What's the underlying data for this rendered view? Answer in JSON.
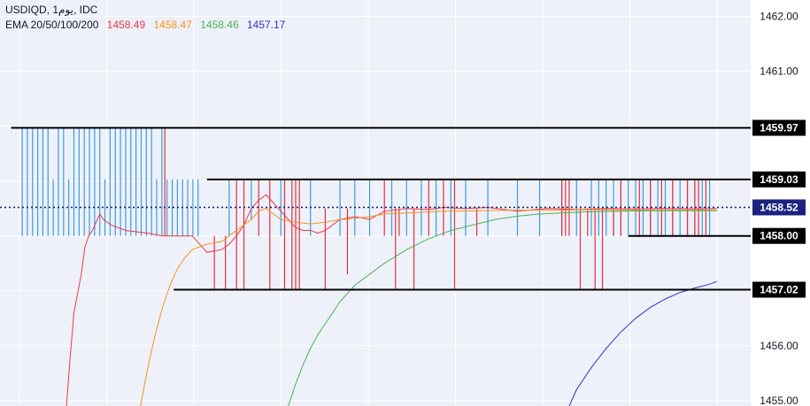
{
  "header": {
    "symbol_line": "USDIQD, 1يوم, IDC",
    "ema_label": "EMA 20/50/100/200",
    "ema_values": [
      {
        "value": "1458.49",
        "color": "#f23645"
      },
      {
        "value": "1458.47",
        "color": "#f7931a"
      },
      {
        "value": "1458.46",
        "color": "#4caf50"
      },
      {
        "value": "1457.17",
        "color": "#3030d0"
      }
    ]
  },
  "colors": {
    "background": "#eef1fa",
    "grid": "#ffffff",
    "up_candle": "#3d9be0",
    "down_candle": "#e0303f",
    "level_line": "#000000",
    "ema20": "#f23645",
    "ema50": "#f7931a",
    "ema100": "#4caf50",
    "ema200": "#3030d0"
  },
  "chart_data": {
    "type": "line",
    "y_axis": {
      "position": "right",
      "range": [
        1454.9,
        1462.3
      ],
      "ticks": [
        "1455.00",
        "1456.00",
        "1457.00",
        "1458.00",
        "1459.00",
        "1460.00",
        "1461.00",
        "1462.00"
      ]
    },
    "grid": true,
    "x_range": [
      0,
      100
    ],
    "horizontal_levels": [
      {
        "label": "1459.97",
        "value": 1459.97,
        "x_start": 1.5
      },
      {
        "label": "1459.03",
        "value": 1459.03,
        "x_start": 28
      },
      {
        "label": "1458.00",
        "value": 1458.0,
        "x_start": 85
      },
      {
        "label": "1457.02",
        "value": 1457.02,
        "x_start": 23.5
      }
    ],
    "current_price": {
      "label": "1458.52",
      "value": 1458.52,
      "style": "dotted"
    },
    "candles_up": [
      [
        3,
        1458,
        1459.97
      ],
      [
        3.7,
        1458,
        1459.97
      ],
      [
        4.4,
        1458,
        1459.97
      ],
      [
        5.1,
        1458,
        1459.97
      ],
      [
        5.8,
        1458,
        1459.97
      ],
      [
        6.5,
        1458,
        1459.97
      ],
      [
        7.2,
        1458,
        1459.03
      ],
      [
        7.9,
        1458,
        1459.97
      ],
      [
        8.6,
        1458,
        1459.97
      ],
      [
        9.3,
        1458,
        1459.03
      ],
      [
        10,
        1458,
        1459.97
      ],
      [
        10.7,
        1458,
        1459.97
      ],
      [
        11.4,
        1458,
        1459.97
      ],
      [
        12.1,
        1458,
        1459.97
      ],
      [
        12.8,
        1458,
        1459.97
      ],
      [
        13.5,
        1458,
        1459.97
      ],
      [
        14.2,
        1458,
        1459.03
      ],
      [
        14.9,
        1458,
        1459.97
      ],
      [
        15.6,
        1458,
        1459.97
      ],
      [
        16.3,
        1458,
        1459.97
      ],
      [
        17,
        1458,
        1459.97
      ],
      [
        17.7,
        1458,
        1459.97
      ],
      [
        18.4,
        1458,
        1459.97
      ],
      [
        19.1,
        1458,
        1459.97
      ],
      [
        19.8,
        1458,
        1459.97
      ],
      [
        20.5,
        1458,
        1459.97
      ],
      [
        21.2,
        1458,
        1459.03
      ],
      [
        21.9,
        1458,
        1459.97
      ],
      [
        22.6,
        1458,
        1459.03
      ],
      [
        23.3,
        1458,
        1459.03
      ],
      [
        24,
        1458,
        1459.03
      ],
      [
        24.7,
        1458,
        1459.03
      ],
      [
        25.4,
        1458,
        1459.03
      ],
      [
        26.1,
        1458,
        1459.03
      ],
      [
        26.8,
        1458,
        1459.03
      ],
      [
        31,
        1458,
        1459.03
      ],
      [
        34,
        1458.3,
        1459.03
      ],
      [
        38,
        1458,
        1459.03
      ],
      [
        42,
        1458,
        1459.03
      ],
      [
        46,
        1458,
        1459.03
      ],
      [
        48,
        1458,
        1459.03
      ],
      [
        50,
        1458,
        1459.03
      ],
      [
        53,
        1458,
        1459.03
      ],
      [
        55,
        1458,
        1459.03
      ],
      [
        57,
        1458,
        1459.03
      ],
      [
        59,
        1458,
        1459.03
      ],
      [
        61,
        1458,
        1459.03
      ],
      [
        63,
        1458,
        1459.03
      ],
      [
        66,
        1458,
        1459.03
      ],
      [
        70,
        1458,
        1459.03
      ],
      [
        73,
        1458,
        1459.03
      ],
      [
        76,
        1458,
        1459.03
      ],
      [
        78,
        1458,
        1459.03
      ],
      [
        80,
        1458,
        1459.03
      ],
      [
        81,
        1458,
        1459.03
      ],
      [
        82,
        1458,
        1459.03
      ],
      [
        83,
        1458,
        1459.03
      ],
      [
        84,
        1458,
        1459.03
      ],
      [
        85,
        1458,
        1459.03
      ],
      [
        86,
        1458,
        1459.03
      ],
      [
        87,
        1458,
        1459.03
      ],
      [
        88,
        1458,
        1459.03
      ],
      [
        89,
        1458,
        1459.03
      ],
      [
        90,
        1458,
        1459.03
      ],
      [
        91,
        1458,
        1459.03
      ],
      [
        92,
        1458,
        1459.03
      ],
      [
        93,
        1458,
        1459.03
      ],
      [
        94,
        1458,
        1459.03
      ],
      [
        95,
        1458,
        1459.03
      ],
      [
        96,
        1458,
        1459.03
      ]
    ],
    "candles_down": [
      [
        22.3,
        1458,
        1459.97
      ],
      [
        29,
        1457.02,
        1458
      ],
      [
        30.5,
        1457.02,
        1458
      ],
      [
        32,
        1457.02,
        1459.03
      ],
      [
        33,
        1457.02,
        1459.03
      ],
      [
        35,
        1458,
        1459.03
      ],
      [
        36.5,
        1457.02,
        1459.03
      ],
      [
        38.5,
        1457.02,
        1459.03
      ],
      [
        39.5,
        1457.02,
        1459.03
      ],
      [
        40,
        1457.02,
        1459.03
      ],
      [
        40.5,
        1457.02,
        1459.03
      ],
      [
        44,
        1457.02,
        1458.5
      ],
      [
        47,
        1457.3,
        1458.5
      ],
      [
        52,
        1458,
        1459.03
      ],
      [
        53.5,
        1457.02,
        1458.5
      ],
      [
        54,
        1458,
        1458.5
      ],
      [
        56,
        1457.02,
        1458.5
      ],
      [
        58,
        1458,
        1459.03
      ],
      [
        60,
        1458,
        1459.03
      ],
      [
        61.5,
        1457.02,
        1459.03
      ],
      [
        64.5,
        1458,
        1458.5
      ],
      [
        76,
        1458,
        1459.03
      ],
      [
        76.5,
        1458,
        1459.03
      ],
      [
        77,
        1458,
        1459.03
      ],
      [
        78.5,
        1457.02,
        1458.5
      ],
      [
        79.5,
        1458,
        1458.5
      ],
      [
        80.5,
        1457.02,
        1458.5
      ],
      [
        81.5,
        1457.02,
        1458.5
      ],
      [
        83,
        1458,
        1458.5
      ],
      [
        84,
        1458,
        1459.03
      ],
      [
        86.5,
        1458,
        1459.03
      ],
      [
        88,
        1458,
        1459.03
      ],
      [
        89.5,
        1458,
        1459.03
      ],
      [
        91,
        1458,
        1459.03
      ],
      [
        93,
        1458,
        1459.03
      ],
      [
        94,
        1458,
        1459.03
      ],
      [
        94.5,
        1458,
        1459.03
      ],
      [
        95.5,
        1458,
        1459.03
      ]
    ],
    "series": [
      {
        "name": "EMA 20",
        "color": "#f23645",
        "x": [
          9,
          9.5,
          10,
          11,
          11.5,
          12,
          12.5,
          13,
          13.5,
          14,
          15,
          17,
          20,
          22,
          24,
          26,
          28,
          30,
          31,
          32,
          33,
          34,
          35,
          36,
          37,
          38,
          39,
          40,
          41,
          42,
          43,
          44,
          45,
          46,
          48,
          50,
          52,
          55,
          58,
          60,
          63,
          66,
          70,
          74,
          78,
          82,
          86,
          90,
          94,
          97
        ],
        "y": [
          1454.9,
          1455.8,
          1456.6,
          1457.3,
          1457.8,
          1458,
          1458.1,
          1458.25,
          1458.4,
          1458.3,
          1458.2,
          1458.1,
          1458.05,
          1458,
          1458,
          1458,
          1457.7,
          1457.75,
          1457.85,
          1458,
          1458.2,
          1458.5,
          1458.65,
          1458.75,
          1458.6,
          1458.45,
          1458.3,
          1458.15,
          1458.1,
          1458.1,
          1458.05,
          1458.1,
          1458.2,
          1458.3,
          1458.35,
          1458.3,
          1458.45,
          1458.5,
          1458.48,
          1458.52,
          1458.5,
          1458.52,
          1458.45,
          1458.5,
          1458.48,
          1458.5,
          1458.49,
          1458.5,
          1458.49,
          1458.5
        ]
      },
      {
        "name": "EMA 50",
        "color": "#f7931a",
        "x": [
          19,
          20,
          21,
          22,
          23,
          24,
          25,
          26,
          27,
          28,
          30,
          32,
          34,
          35,
          36,
          37,
          38,
          40,
          42,
          44,
          46,
          48,
          50,
          52,
          55,
          60,
          65,
          70,
          75,
          80,
          85,
          90,
          94,
          97
        ],
        "y": [
          1454.9,
          1455.6,
          1456.2,
          1456.7,
          1457.1,
          1457.4,
          1457.6,
          1457.75,
          1457.8,
          1457.85,
          1457.9,
          1458.1,
          1458.3,
          1458.45,
          1458.5,
          1458.4,
          1458.3,
          1458.25,
          1458.22,
          1458.25,
          1458.3,
          1458.32,
          1458.35,
          1458.4,
          1458.42,
          1458.45,
          1458.46,
          1458.47,
          1458.47,
          1458.48,
          1458.47,
          1458.47,
          1458.47,
          1458.47
        ]
      },
      {
        "name": "EMA 100",
        "color": "#4caf50",
        "x": [
          39,
          40,
          41,
          42,
          43,
          44,
          45,
          46,
          48,
          50,
          52,
          55,
          58,
          61,
          64,
          67,
          70,
          73,
          76,
          80,
          84,
          88,
          92,
          95,
          97
        ],
        "y": [
          1454.9,
          1455.3,
          1455.65,
          1455.95,
          1456.2,
          1456.4,
          1456.6,
          1456.8,
          1457.1,
          1457.3,
          1457.5,
          1457.75,
          1457.95,
          1458.1,
          1458.2,
          1458.3,
          1458.36,
          1458.4,
          1458.42,
          1458.44,
          1458.45,
          1458.46,
          1458.46,
          1458.46,
          1458.46
        ]
      },
      {
        "name": "EMA 200",
        "color": "#3030d0",
        "x": [
          77,
          78,
          80,
          82,
          84,
          86,
          88,
          90,
          92,
          94,
          96,
          97
        ],
        "y": [
          1454.9,
          1455.2,
          1455.6,
          1455.95,
          1456.25,
          1456.5,
          1456.7,
          1456.85,
          1456.97,
          1457.05,
          1457.12,
          1457.17
        ]
      }
    ]
  }
}
